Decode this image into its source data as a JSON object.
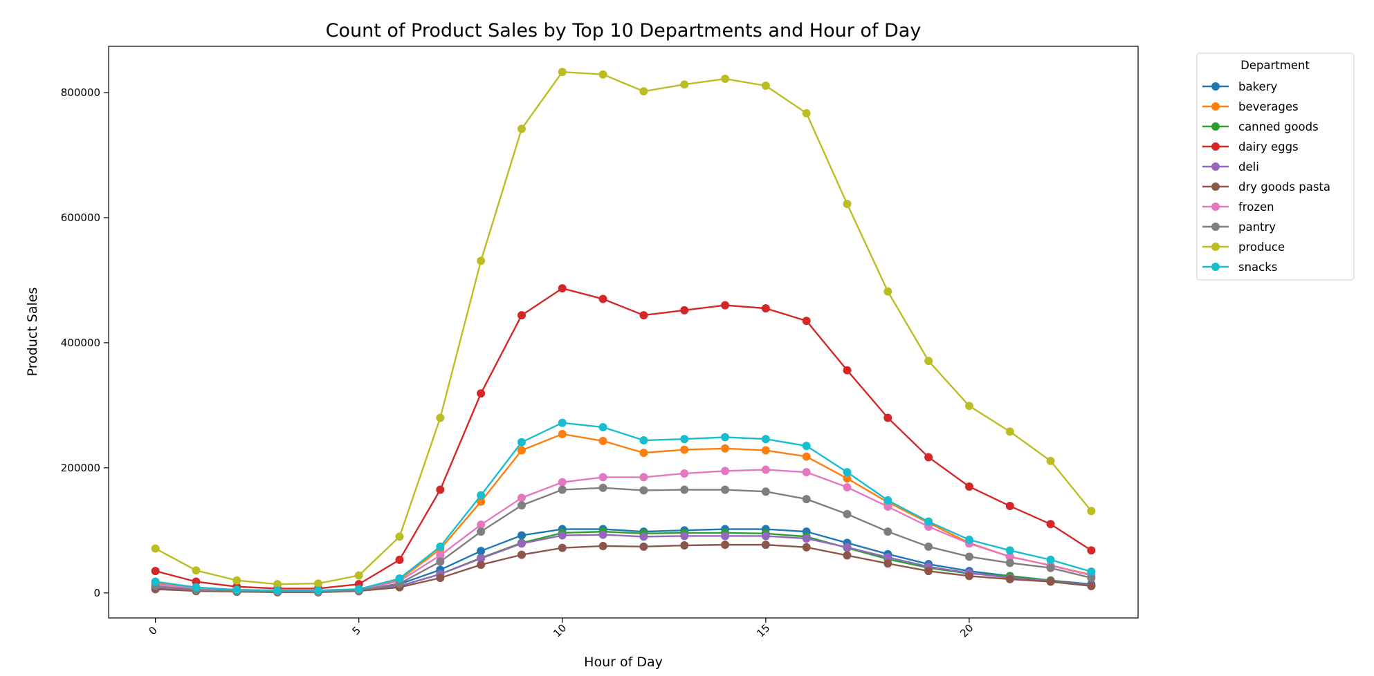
{
  "chart_data": {
    "type": "line",
    "title": "Count of Product Sales by Top 10 Departments and Hour of Day",
    "xlabel": "Hour of Day",
    "ylabel": "Product Sales",
    "xlim": [
      -1.15,
      24.15
    ],
    "ylim": [
      -40000,
      874000
    ],
    "xticks": [
      0,
      5,
      10,
      15,
      20
    ],
    "yticks": [
      0,
      200000,
      400000,
      600000,
      800000
    ],
    "grid": false,
    "legend": {
      "title": "Department",
      "placement": "outside-top-right"
    },
    "x": [
      0,
      1,
      2,
      3,
      4,
      5,
      6,
      7,
      8,
      9,
      10,
      11,
      12,
      13,
      14,
      15,
      16,
      17,
      18,
      19,
      20,
      21,
      22,
      23
    ],
    "series": [
      {
        "name": "bakery",
        "color": "#1f77b4",
        "values": [
          10000,
          5000,
          3000,
          2000,
          2000,
          4000,
          14000,
          37000,
          67000,
          92000,
          102000,
          102000,
          98000,
          100000,
          102000,
          102000,
          98000,
          80000,
          62000,
          46000,
          35000,
          27000,
          20000,
          14000
        ]
      },
      {
        "name": "beverages",
        "color": "#ff7f0e",
        "values": [
          16000,
          8000,
          5000,
          4000,
          4000,
          6000,
          21000,
          70000,
          146000,
          228000,
          254000,
          243000,
          224000,
          229000,
          231000,
          228000,
          218000,
          183000,
          145000,
          112000,
          80000,
          58000,
          44000,
          29000
        ]
      },
      {
        "name": "canned goods",
        "color": "#2ca02c",
        "values": [
          8000,
          4000,
          2000,
          2000,
          2000,
          3000,
          11000,
          30000,
          56000,
          80000,
          96000,
          98000,
          95000,
          96000,
          96000,
          95000,
          90000,
          72000,
          54000,
          40000,
          31000,
          27000,
          20000,
          12000
        ]
      },
      {
        "name": "dairy eggs",
        "color": "#d62728",
        "values": [
          35000,
          18000,
          10000,
          7000,
          7000,
          14000,
          53000,
          165000,
          319000,
          444000,
          487000,
          470000,
          444000,
          452000,
          460000,
          455000,
          435000,
          356000,
          280000,
          217000,
          170000,
          139000,
          110000,
          68000
        ]
      },
      {
        "name": "deli",
        "color": "#9467bd",
        "values": [
          9000,
          4000,
          2000,
          2000,
          2000,
          3000,
          11000,
          30000,
          55000,
          79000,
          92000,
          93000,
          90000,
          91000,
          91000,
          91000,
          87000,
          73000,
          57000,
          42000,
          32000,
          24000,
          19000,
          12000
        ]
      },
      {
        "name": "dry goods pasta",
        "color": "#8c564b",
        "values": [
          6000,
          3000,
          2000,
          1000,
          1000,
          3000,
          9000,
          24000,
          45000,
          61000,
          72000,
          75000,
          74000,
          76000,
          77000,
          77000,
          73000,
          60000,
          47000,
          35000,
          27000,
          22000,
          18000,
          11000
        ]
      },
      {
        "name": "frozen",
        "color": "#e377c2",
        "values": [
          14000,
          7000,
          4000,
          3000,
          3000,
          5000,
          19000,
          60000,
          109000,
          152000,
          177000,
          185000,
          185000,
          191000,
          195000,
          197000,
          193000,
          169000,
          138000,
          106000,
          79000,
          58000,
          44000,
          28000
        ]
      },
      {
        "name": "pantry",
        "color": "#7f7f7f",
        "values": [
          11000,
          5000,
          3000,
          2000,
          2000,
          4000,
          15000,
          50000,
          98000,
          140000,
          165000,
          168000,
          164000,
          165000,
          165000,
          162000,
          150000,
          126000,
          98000,
          74000,
          58000,
          48000,
          40000,
          24000
        ]
      },
      {
        "name": "produce",
        "color": "#bcbd22",
        "values": [
          71000,
          36000,
          20000,
          14000,
          15000,
          28000,
          90000,
          280000,
          531000,
          742000,
          833000,
          829000,
          802000,
          813000,
          822000,
          811000,
          767000,
          622000,
          482000,
          371000,
          299000,
          258000,
          211000,
          131000
        ]
      },
      {
        "name": "snacks",
        "color": "#17becf",
        "values": [
          18000,
          9000,
          5000,
          4000,
          4000,
          6000,
          23000,
          74000,
          156000,
          241000,
          272000,
          265000,
          244000,
          246000,
          249000,
          246000,
          235000,
          193000,
          148000,
          114000,
          85000,
          68000,
          53000,
          34000
        ]
      }
    ]
  }
}
